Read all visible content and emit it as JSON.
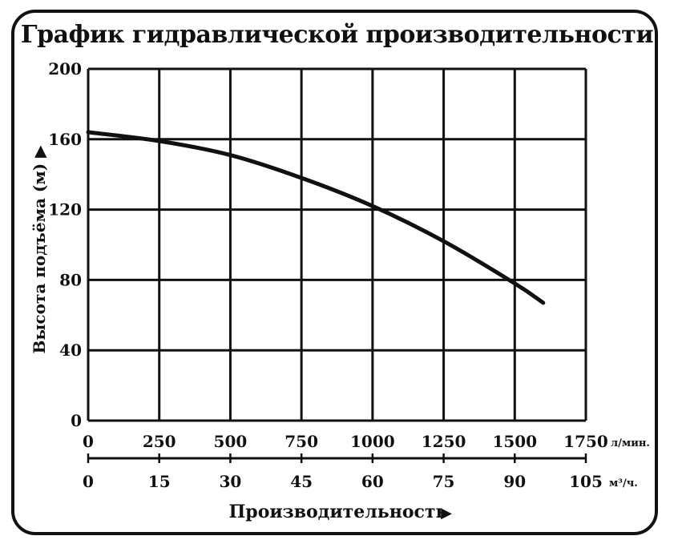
{
  "chart_data": {
    "type": "line",
    "title": "График гидравлической производительности",
    "ylabel": "Высота подъёма (м) ▶",
    "xlabel": "Производительность",
    "xlabel_arrow": "▶",
    "ylim": [
      0,
      200
    ],
    "y_ticks": [
      "0",
      "40",
      "80",
      "120",
      "160",
      "200"
    ],
    "x_axis_primary": {
      "unit": "л/мин.",
      "range": [
        0,
        1750
      ],
      "ticks": [
        "0",
        "250",
        "500",
        "750",
        "1000",
        "1250",
        "1500",
        "1750"
      ]
    },
    "x_axis_secondary": {
      "unit": "м³/ч.",
      "range": [
        0,
        105
      ],
      "ticks": [
        "0",
        "15",
        "30",
        "45",
        "60",
        "75",
        "90",
        "105"
      ]
    },
    "grid": true,
    "series": [
      {
        "x": [
          0,
          250,
          500,
          750,
          1000,
          1250,
          1500,
          1600
        ],
        "y": [
          164,
          159,
          151,
          138,
          122,
          102,
          78,
          67
        ]
      }
    ]
  }
}
